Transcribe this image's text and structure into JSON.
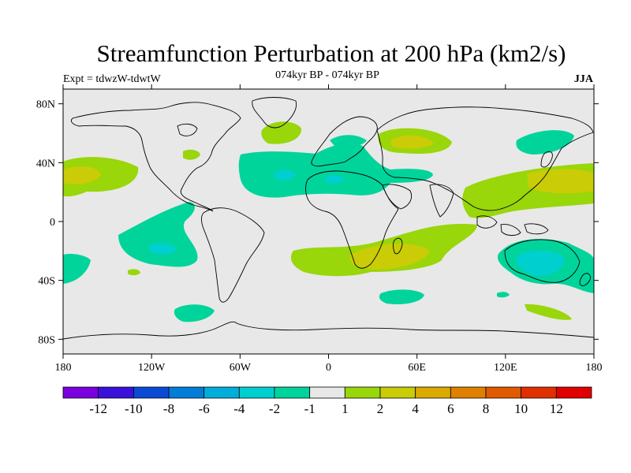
{
  "title": "Streamfunction Perturbation at 200 hPa (km2/s)",
  "left_subtitle": "Expt = tdwzW-tdwtW",
  "center_subtitle": "074kyr BP - 074kyr BP",
  "right_subtitle": "JJA",
  "colors": {
    "land_background": "#e8e8e8",
    "coast": "#000000",
    "pos_1_2": "#99d60a",
    "pos_2_4": "#c9cc06",
    "neg_1_2": "#00d49b",
    "neg_2_4": "#00cfcf"
  },
  "map": {
    "projection": "cylindrical-equidistant",
    "lon_range": [
      -180,
      180
    ],
    "lat_range": [
      -90,
      90
    ],
    "y_ticks": [
      {
        "lat": 80,
        "label": "80N"
      },
      {
        "lat": 40,
        "label": "40N"
      },
      {
        "lat": 0,
        "label": "0"
      },
      {
        "lat": -40,
        "label": "40S"
      },
      {
        "lat": -80,
        "label": "80S"
      }
    ],
    "x_ticks": [
      {
        "lon": -180,
        "label": "180"
      },
      {
        "lon": -120,
        "label": "120W"
      },
      {
        "lon": -60,
        "label": "60W"
      },
      {
        "lon": 0,
        "label": "0"
      },
      {
        "lon": 60,
        "label": "60E"
      },
      {
        "lon": 120,
        "label": "120E"
      },
      {
        "lon": 180,
        "label": "180"
      }
    ]
  },
  "colorbar": {
    "colors": [
      "#7a00e0",
      "#3b10db",
      "#0b4ad4",
      "#007dd6",
      "#00aedb",
      "#00cfcf",
      "#00d49b",
      "#e8e8e8",
      "#99d60a",
      "#c9cc06",
      "#dbaa00",
      "#e08000",
      "#e05a00",
      "#e03000",
      "#e00000"
    ],
    "labels": [
      "-12",
      "-10",
      "-8",
      "-6",
      "-4",
      "-2",
      "-1",
      "1",
      "2",
      "4",
      "6",
      "8",
      "10",
      "12"
    ]
  }
}
